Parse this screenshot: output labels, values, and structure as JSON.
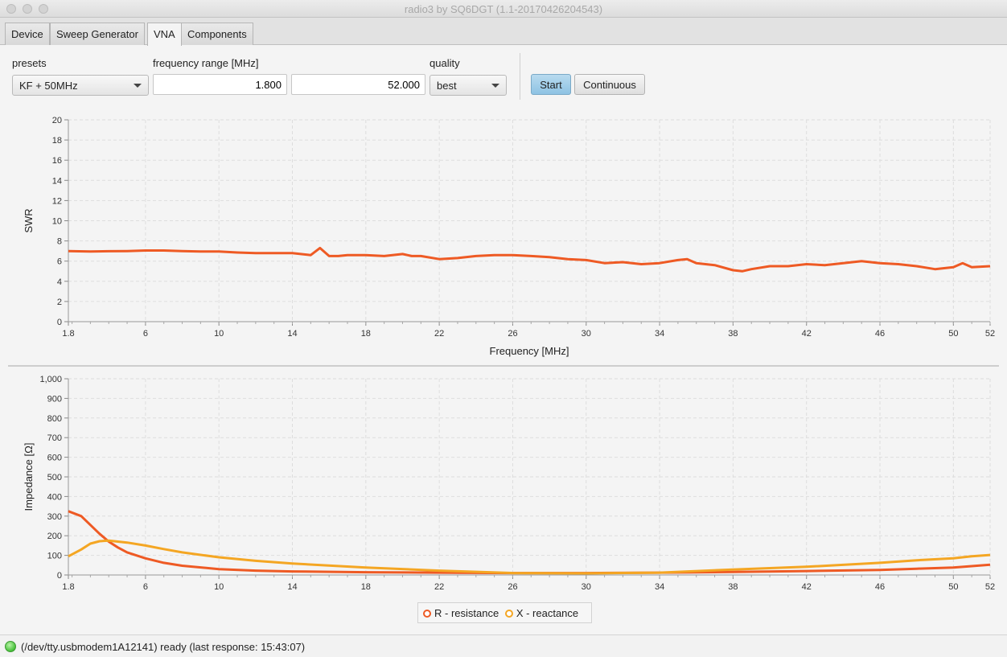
{
  "window": {
    "title": "radio3 by SQ6DGT (1.1-20170426204543)"
  },
  "tabs": [
    {
      "label": "Device"
    },
    {
      "label": "Sweep Generator"
    },
    {
      "label": "VNA"
    },
    {
      "label": "Components"
    }
  ],
  "active_tab": "VNA",
  "controls": {
    "presets_label": "presets",
    "presets_value": "KF + 50MHz",
    "freq_label": "frequency range [MHz]",
    "freq_start": "1.800",
    "freq_end": "52.000",
    "quality_label": "quality",
    "quality_value": "best",
    "start_label": "Start",
    "continuous_label": "Continuous"
  },
  "legend": {
    "r_label": "R - resistance",
    "x_label": "X - reactance"
  },
  "status": {
    "text": "(/dev/tty.usbmodem1A12141) ready (last response: 15:43:07)",
    "led_color": "#47c13a"
  },
  "colors": {
    "swr": "#ee5a24",
    "resistance": "#ee5a24",
    "reactance": "#f4a623",
    "grid": "#dddddd"
  },
  "chart_data": [
    {
      "type": "line",
      "xlabel": "Frequency [MHz]",
      "ylabel": "SWR",
      "xlim": [
        1.8,
        52
      ],
      "ylim": [
        0,
        20
      ],
      "x_ticks": [
        "1.8",
        "6",
        "10",
        "14",
        "18",
        "22",
        "26",
        "30",
        "34",
        "38",
        "42",
        "46",
        "50",
        "52"
      ],
      "y_ticks": [
        "0",
        "2",
        "4",
        "6",
        "8",
        "10",
        "12",
        "14",
        "16",
        "18",
        "20"
      ],
      "grid": true,
      "series": [
        {
          "x": [
            1.8,
            3,
            4,
            5,
            6,
            7,
            8,
            9,
            10,
            11,
            12,
            13,
            14,
            15,
            15.5,
            16,
            16.5,
            17,
            18,
            19,
            20,
            20.5,
            21,
            22,
            23,
            24,
            25,
            26,
            27,
            28,
            29,
            30,
            31,
            32,
            33,
            34,
            35,
            35.5,
            36,
            37,
            38,
            38.5,
            39,
            40,
            41,
            42,
            43,
            44,
            45,
            46,
            47,
            48,
            49,
            50,
            50.5,
            51,
            52
          ],
          "values": [
            7.0,
            6.95,
            6.98,
            7.0,
            7.05,
            7.05,
            7.0,
            6.95,
            6.95,
            6.85,
            6.8,
            6.8,
            6.8,
            6.6,
            7.3,
            6.5,
            6.5,
            6.6,
            6.6,
            6.5,
            6.7,
            6.5,
            6.5,
            6.2,
            6.3,
            6.5,
            6.6,
            6.6,
            6.5,
            6.4,
            6.2,
            6.1,
            5.8,
            5.9,
            5.7,
            5.8,
            6.1,
            6.2,
            5.8,
            5.6,
            5.1,
            5.0,
            5.2,
            5.5,
            5.5,
            5.7,
            5.6,
            5.8,
            6.0,
            5.8,
            5.7,
            5.5,
            5.2,
            5.4,
            5.8,
            5.4,
            5.5
          ]
        }
      ]
    },
    {
      "type": "line",
      "xlabel": "",
      "ylabel": "Impedance [Ω]",
      "xlim": [
        1.8,
        52
      ],
      "ylim": [
        0,
        1000
      ],
      "x_ticks": [
        "1.8",
        "6",
        "10",
        "14",
        "18",
        "22",
        "26",
        "30",
        "34",
        "38",
        "42",
        "46",
        "50",
        "52"
      ],
      "y_ticks": [
        "0",
        "100",
        "200",
        "300",
        "400",
        "500",
        "600",
        "700",
        "800",
        "900",
        "1,000"
      ],
      "grid": true,
      "series": [
        {
          "name": "R - resistance",
          "x": [
            1.8,
            2.5,
            3,
            3.5,
            4,
            4.5,
            5,
            6,
            7,
            8,
            10,
            12,
            14,
            18,
            22,
            26,
            30,
            34,
            38,
            42,
            46,
            48,
            50,
            51,
            52
          ],
          "values": [
            325,
            300,
            255,
            210,
            170,
            140,
            115,
            85,
            62,
            47,
            30,
            22,
            18,
            14,
            12,
            10,
            10,
            12,
            15,
            20,
            26,
            32,
            38,
            45,
            52
          ]
        },
        {
          "name": "X - reactance",
          "x": [
            1.8,
            2.5,
            3,
            3.5,
            4,
            4.5,
            5,
            6,
            7,
            8,
            10,
            12,
            14,
            18,
            22,
            26,
            30,
            34,
            38,
            42,
            46,
            48,
            50,
            51,
            52
          ],
          "values": [
            95,
            130,
            160,
            172,
            175,
            170,
            165,
            150,
            132,
            115,
            90,
            72,
            58,
            38,
            22,
            10,
            8,
            12,
            28,
            42,
            62,
            75,
            85,
            95,
            102
          ]
        }
      ]
    }
  ]
}
